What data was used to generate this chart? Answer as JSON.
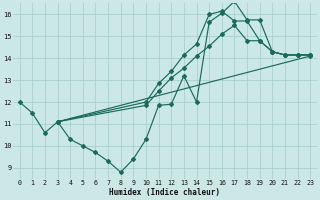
{
  "xlabel": "Humidex (Indice chaleur)",
  "background_color": "#cce8e6",
  "grid_color": "#aacfcc",
  "line_color": "#1a6b5a",
  "xlim": [
    -0.5,
    23.5
  ],
  "ylim": [
    8.5,
    16.5
  ],
  "yticks": [
    9,
    10,
    11,
    12,
    13,
    14,
    15,
    16
  ],
  "xticks": [
    0,
    1,
    2,
    3,
    4,
    5,
    6,
    7,
    8,
    9,
    10,
    11,
    12,
    13,
    14,
    15,
    16,
    17,
    18,
    19,
    20,
    21,
    22,
    23
  ],
  "series": [
    {
      "x": [
        0,
        1,
        2,
        3,
        4,
        5,
        6,
        7,
        8,
        9,
        10,
        11,
        12,
        13,
        14,
        15,
        16,
        17,
        18,
        19,
        20,
        21,
        22,
        23
      ],
      "y": [
        12.0,
        11.5,
        10.6,
        11.1,
        10.3,
        10.0,
        9.7,
        9.3,
        8.8,
        9.4,
        10.3,
        11.85,
        11.9,
        13.2,
        12.0,
        15.65,
        16.05,
        16.6,
        15.75,
        15.75,
        14.3,
        14.15,
        14.15,
        14.15
      ]
    },
    {
      "x": [
        3,
        23
      ],
      "y": [
        11.1,
        14.1
      ]
    },
    {
      "x": [
        3,
        10,
        11,
        12,
        13,
        14,
        15,
        16,
        17,
        18,
        19,
        20,
        21,
        22,
        23
      ],
      "y": [
        11.1,
        11.85,
        12.5,
        13.1,
        13.55,
        14.1,
        14.55,
        15.1,
        15.5,
        14.8,
        14.8,
        14.3,
        14.15,
        14.15,
        14.15
      ]
    },
    {
      "x": [
        3,
        10,
        11,
        12,
        13,
        14,
        15,
        16,
        17,
        18,
        19,
        20,
        21,
        22,
        23
      ],
      "y": [
        11.1,
        12.0,
        12.85,
        13.4,
        14.15,
        14.65,
        16.0,
        16.15,
        15.7,
        15.7,
        14.8,
        14.3,
        14.15,
        14.15,
        14.15
      ]
    }
  ]
}
